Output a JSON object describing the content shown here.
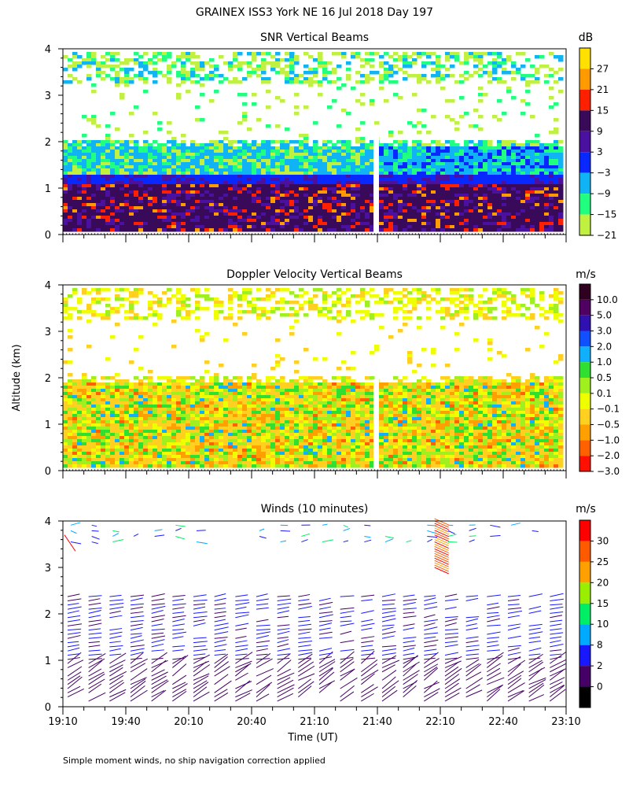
{
  "page_title": "GRAINEX ISS3 York NE  16 Jul 2018 Day 197",
  "footnote": "Simple moment winds, no ship navigation correction applied",
  "shared_axes": {
    "ylabel": "Altitude (km)",
    "xlabel": "Time (UT)",
    "y_ticks": [
      "0",
      "1",
      "2",
      "3",
      "4"
    ],
    "x_ticks": [
      "19:10",
      "19:40",
      "20:10",
      "20:40",
      "21:10",
      "21:40",
      "22:10",
      "22:40",
      "23:10"
    ]
  },
  "chart_data": [
    {
      "type": "heatmap",
      "title": "SNR Vertical Beams",
      "xlabel": "",
      "ylabel": "Altitude (km)",
      "x_range": [
        "19:10",
        "23:10"
      ],
      "ylim": [
        0,
        4
      ],
      "colorbar": {
        "unit": "dB",
        "labels": [
          "27",
          "21",
          "15",
          "9",
          "3",
          "−3",
          "−9",
          "−15",
          "−21"
        ],
        "colors": [
          "#ffe000",
          "#ff9a00",
          "#ff2000",
          "#3a0a5a",
          "#4a10a0",
          "#0828ff",
          "#10b4f4",
          "#20ff80",
          "#c0f040"
        ]
      },
      "layers": [
        {
          "altitude_km": [
            0.1,
            1.2
          ],
          "snr_db": "9 to 15, scattered 15 to 27"
        },
        {
          "altitude_km": [
            1.2,
            2.0
          ],
          "snr_db": "-15 to -3 (-3 to 3 after 21:40)"
        },
        {
          "altitude_km": [
            3.3,
            4.0
          ],
          "snr_db": "-21 to -15, sparse"
        }
      ]
    },
    {
      "type": "heatmap",
      "title": "Doppler Velocity Vertical Beams",
      "xlabel": "",
      "ylabel": "Altitude (km)",
      "x_range": [
        "19:10",
        "23:10"
      ],
      "ylim": [
        0,
        4
      ],
      "colorbar": {
        "unit": "m/s",
        "labels": [
          "10.0",
          "5.0",
          "3.0",
          "2.0",
          "1.0",
          "0.5",
          "0.1",
          "−0.1",
          "−0.5",
          "−1.0",
          "−2.0",
          "−3.0"
        ],
        "colors": [
          "#300020",
          "#500060",
          "#3010b0",
          "#1050ff",
          "#10b0ff",
          "#30e030",
          "#a0f020",
          "#f0ff00",
          "#ffd020",
          "#ffa000",
          "#ff6000",
          "#ff1000"
        ]
      },
      "layers": [
        {
          "altitude_km": [
            0.1,
            2.0
          ],
          "velocity_ms": "-1.0 to 0.5, dominant -0.5"
        },
        {
          "altitude_km": [
            3.3,
            4.0
          ],
          "velocity_ms": "0.1 to -0.5, sparse"
        }
      ]
    },
    {
      "type": "scatter",
      "title": "Winds (10 minutes)",
      "xlabel": "Time (UT)",
      "ylabel": "Altitude (km)",
      "x_range": [
        "19:10",
        "23:10"
      ],
      "ylim": [
        0,
        4
      ],
      "colorbar": {
        "unit": "m/s",
        "labels": [
          "30",
          "25",
          "20",
          "15",
          "10",
          "8",
          "2",
          "0"
        ],
        "colors": [
          "#ff0000",
          "#ff5a00",
          "#ffa000",
          "#9aee00",
          "#00ee66",
          "#00aaff",
          "#1818ff",
          "#440066",
          "#000000"
        ]
      },
      "profile_times": [
        "19:10",
        "19:20",
        "19:30",
        "19:40",
        "19:50",
        "20:00",
        "20:10",
        "20:20",
        "20:30",
        "20:40",
        "20:50",
        "21:00",
        "21:10",
        "21:20",
        "21:30",
        "21:40",
        "21:50",
        "22:00",
        "22:10",
        "22:20",
        "22:30",
        "22:40",
        "22:50",
        "23:00"
      ],
      "dominant_speed_ms": "2 to 8"
    }
  ]
}
